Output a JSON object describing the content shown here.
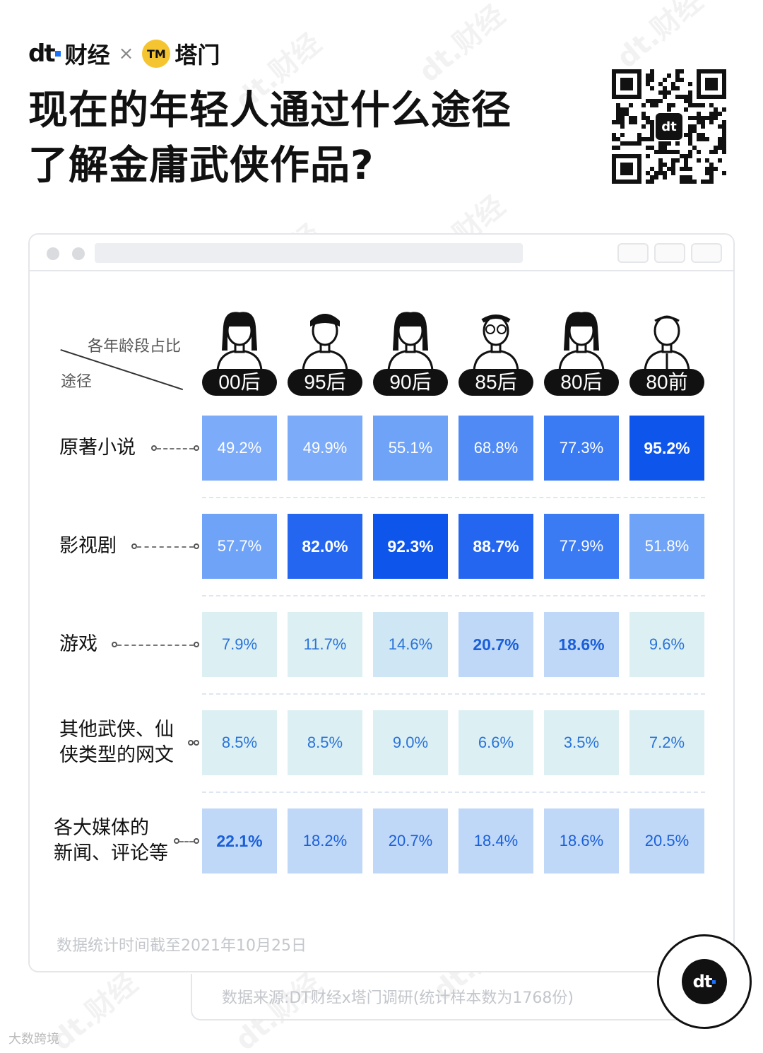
{
  "brand": {
    "dt_mark": "dt",
    "dt_name": "财经",
    "separator": "×",
    "partner_mark": "TM",
    "partner_name": "塔门"
  },
  "title_lines": [
    "现在的年轻人通过什么途径",
    "了解金庸武侠作品?"
  ],
  "legend": {
    "top": "各年龄段占比",
    "bottom": "途径"
  },
  "watermark": "dt.财经",
  "chart_data": {
    "type": "heatmap",
    "title": "现在的年轻人通过什么途径了解金庸武侠作品?",
    "columns": [
      "00后",
      "95后",
      "90后",
      "85后",
      "80后",
      "80前"
    ],
    "rows": [
      {
        "label": "原著小说",
        "values": [
          49.2,
          49.9,
          55.1,
          68.8,
          77.3,
          95.2
        ],
        "labels": [
          "49.2%",
          "49.9%",
          "55.1%",
          "68.8%",
          "77.3%",
          "95.2%"
        ],
        "bold": [
          false,
          false,
          false,
          false,
          false,
          true
        ]
      },
      {
        "label": "影视剧",
        "values": [
          57.7,
          82.0,
          92.3,
          88.7,
          77.9,
          51.8
        ],
        "labels": [
          "57.7%",
          "82.0%",
          "92.3%",
          "88.7%",
          "77.9%",
          "51.8%"
        ],
        "bold": [
          false,
          true,
          true,
          true,
          false,
          false
        ]
      },
      {
        "label": "游戏",
        "values": [
          7.9,
          11.7,
          14.6,
          20.7,
          18.6,
          9.6
        ],
        "labels": [
          "7.9%",
          "11.7%",
          "14.6%",
          "20.7%",
          "18.6%",
          "9.6%"
        ],
        "bold": [
          false,
          false,
          false,
          true,
          true,
          false
        ]
      },
      {
        "label": "其他武侠、仙侠类型的网文",
        "label_lines": [
          "其他武侠、仙",
          "侠类型的网文"
        ],
        "values": [
          8.5,
          8.5,
          9.0,
          6.6,
          3.5,
          7.2
        ],
        "labels": [
          "8.5%",
          "8.5%",
          "9.0%",
          "6.6%",
          "3.5%",
          "7.2%"
        ],
        "bold": [
          false,
          false,
          false,
          false,
          false,
          false
        ]
      },
      {
        "label": "各大媒体的新闻、评论等",
        "label_lines": [
          "各大媒体的",
          "新闻、评论等"
        ],
        "values": [
          22.1,
          18.2,
          20.7,
          18.4,
          18.6,
          20.5
        ],
        "labels": [
          "22.1%",
          "18.2%",
          "20.7%",
          "18.4%",
          "18.6%",
          "20.5%"
        ],
        "bold": [
          true,
          false,
          false,
          false,
          false,
          false
        ]
      }
    ]
  },
  "note": "数据统计时间截至2021年10月25日",
  "source": "数据来源:DT财经x塔门调研(统计样本数为1768份)",
  "badge": "dt",
  "credit": "大数跨境"
}
